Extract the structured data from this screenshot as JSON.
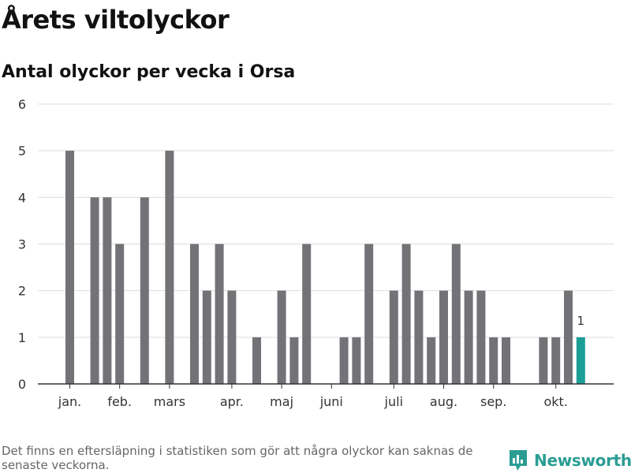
{
  "header": {
    "title": "Årets viltolyckor",
    "subtitle": "Antal olyckor per vecka i Orsa"
  },
  "footer": {
    "note": "Det finns en eftersläpning i statistiken som gör att några olyckor kan saknas de senaste veckorna.",
    "brand": "Newsworthy",
    "brand_icon": "bar-chart-speech-bubble-icon",
    "brand_color": "#2a9d93"
  },
  "colors": {
    "bar": "#737277",
    "highlight": "#1a9e96",
    "grid": "#dddddd",
    "axis": "#333333"
  },
  "chart_data": {
    "type": "bar",
    "title": "Årets viltolyckor",
    "subtitle": "Antal olyckor per vecka i Orsa",
    "xlabel": "",
    "ylabel": "",
    "ylim": [
      0,
      6
    ],
    "yticks": [
      0,
      1,
      2,
      3,
      4,
      5,
      6
    ],
    "weeks": [
      1,
      2,
      3,
      4,
      5,
      6,
      7,
      8,
      9,
      10,
      11,
      12,
      13,
      14,
      15,
      16,
      17,
      18,
      19,
      20,
      21,
      22,
      23,
      24,
      25,
      26,
      27,
      28,
      29,
      30,
      31,
      32,
      33,
      34,
      35,
      36,
      37,
      38,
      39,
      40,
      41,
      42,
      43,
      44
    ],
    "values": [
      5,
      0,
      4,
      4,
      3,
      0,
      4,
      0,
      5,
      0,
      3,
      2,
      3,
      2,
      0,
      1,
      0,
      2,
      1,
      3,
      0,
      0,
      1,
      1,
      3,
      0,
      2,
      3,
      2,
      1,
      2,
      3,
      2,
      2,
      1,
      1,
      0,
      0,
      1,
      1,
      2,
      1,
      0,
      0
    ],
    "x_tick_labels": [
      {
        "label": "jan.",
        "week": 1
      },
      {
        "label": "feb.",
        "week": 5
      },
      {
        "label": "mars",
        "week": 9
      },
      {
        "label": "apr.",
        "week": 14
      },
      {
        "label": "maj",
        "week": 18
      },
      {
        "label": "juni",
        "week": 22
      },
      {
        "label": "juli",
        "week": 27
      },
      {
        "label": "aug.",
        "week": 31
      },
      {
        "label": "sep.",
        "week": 35
      },
      {
        "label": "okt.",
        "week": 40
      }
    ],
    "highlight_week": 42,
    "highlight_label": "1",
    "grid": true,
    "legend": "none"
  }
}
